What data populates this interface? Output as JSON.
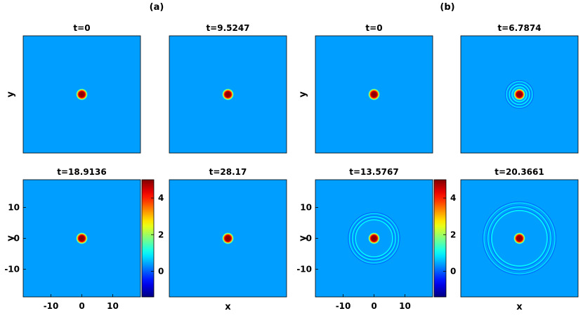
{
  "chart_data": {
    "type": "heatmap",
    "colormap": "jet",
    "groups": [
      {
        "label": "(a)",
        "panels": [
          {
            "title": "t=0",
            "x_center": 0,
            "y_center": 0,
            "core_radius": 1.3,
            "peak": 5,
            "rings": []
          },
          {
            "title": "t=9.5247",
            "x_center": 0,
            "y_center": 0,
            "core_radius": 1.3,
            "peak": 5,
            "rings": []
          },
          {
            "title": "t=18.9136",
            "x_center": 0,
            "y_center": 0,
            "core_radius": 1.3,
            "peak": 5,
            "rings": []
          },
          {
            "title": "t=28.17",
            "x_center": 0,
            "y_center": 0,
            "core_radius": 1.3,
            "peak": 5,
            "rings": []
          }
        ],
        "colorbar": {
          "min": -1.4,
          "max": 5,
          "tick_labels": [
            "4",
            "2",
            "0"
          ],
          "tick_values": [
            4,
            2,
            0
          ]
        }
      },
      {
        "label": "(b)",
        "panels": [
          {
            "title": "t=0",
            "x_center": 0,
            "y_center": 0,
            "core_radius": 1.3,
            "peak": 5,
            "rings": []
          },
          {
            "title": "t=6.7874",
            "x_center": 0,
            "y_center": 0,
            "core_radius": 1.3,
            "peak": 5,
            "rings": [
              2.4,
              3.3,
              4.2
            ]
          },
          {
            "title": "t=13.5767",
            "x_center": 0,
            "y_center": 0,
            "core_radius": 1.3,
            "peak": 5,
            "rings": [
              6.0,
              7.0,
              8.0
            ]
          },
          {
            "title": "t=20.3661",
            "x_center": 0,
            "y_center": 0,
            "core_radius": 1.3,
            "peak": 5,
            "rings": [
              9.0,
              10.2,
              11.5
            ]
          }
        ],
        "colorbar": {
          "min": -1.4,
          "max": 5,
          "tick_labels": [
            "4",
            "2",
            "0"
          ],
          "tick_values": [
            4,
            2,
            0
          ]
        }
      }
    ],
    "xlim": [
      -19,
      19
    ],
    "ylim": [
      -19,
      19
    ],
    "x_tick_labels": [
      "-10",
      "0",
      "10"
    ],
    "x_tick_values": [
      -10,
      0,
      10
    ],
    "y_tick_labels": [
      "10",
      "0",
      "-10"
    ],
    "y_tick_values": [
      10,
      0,
      -10
    ],
    "xlabel": "x",
    "ylabel": "y",
    "background_value": 0.4,
    "grid": false
  }
}
